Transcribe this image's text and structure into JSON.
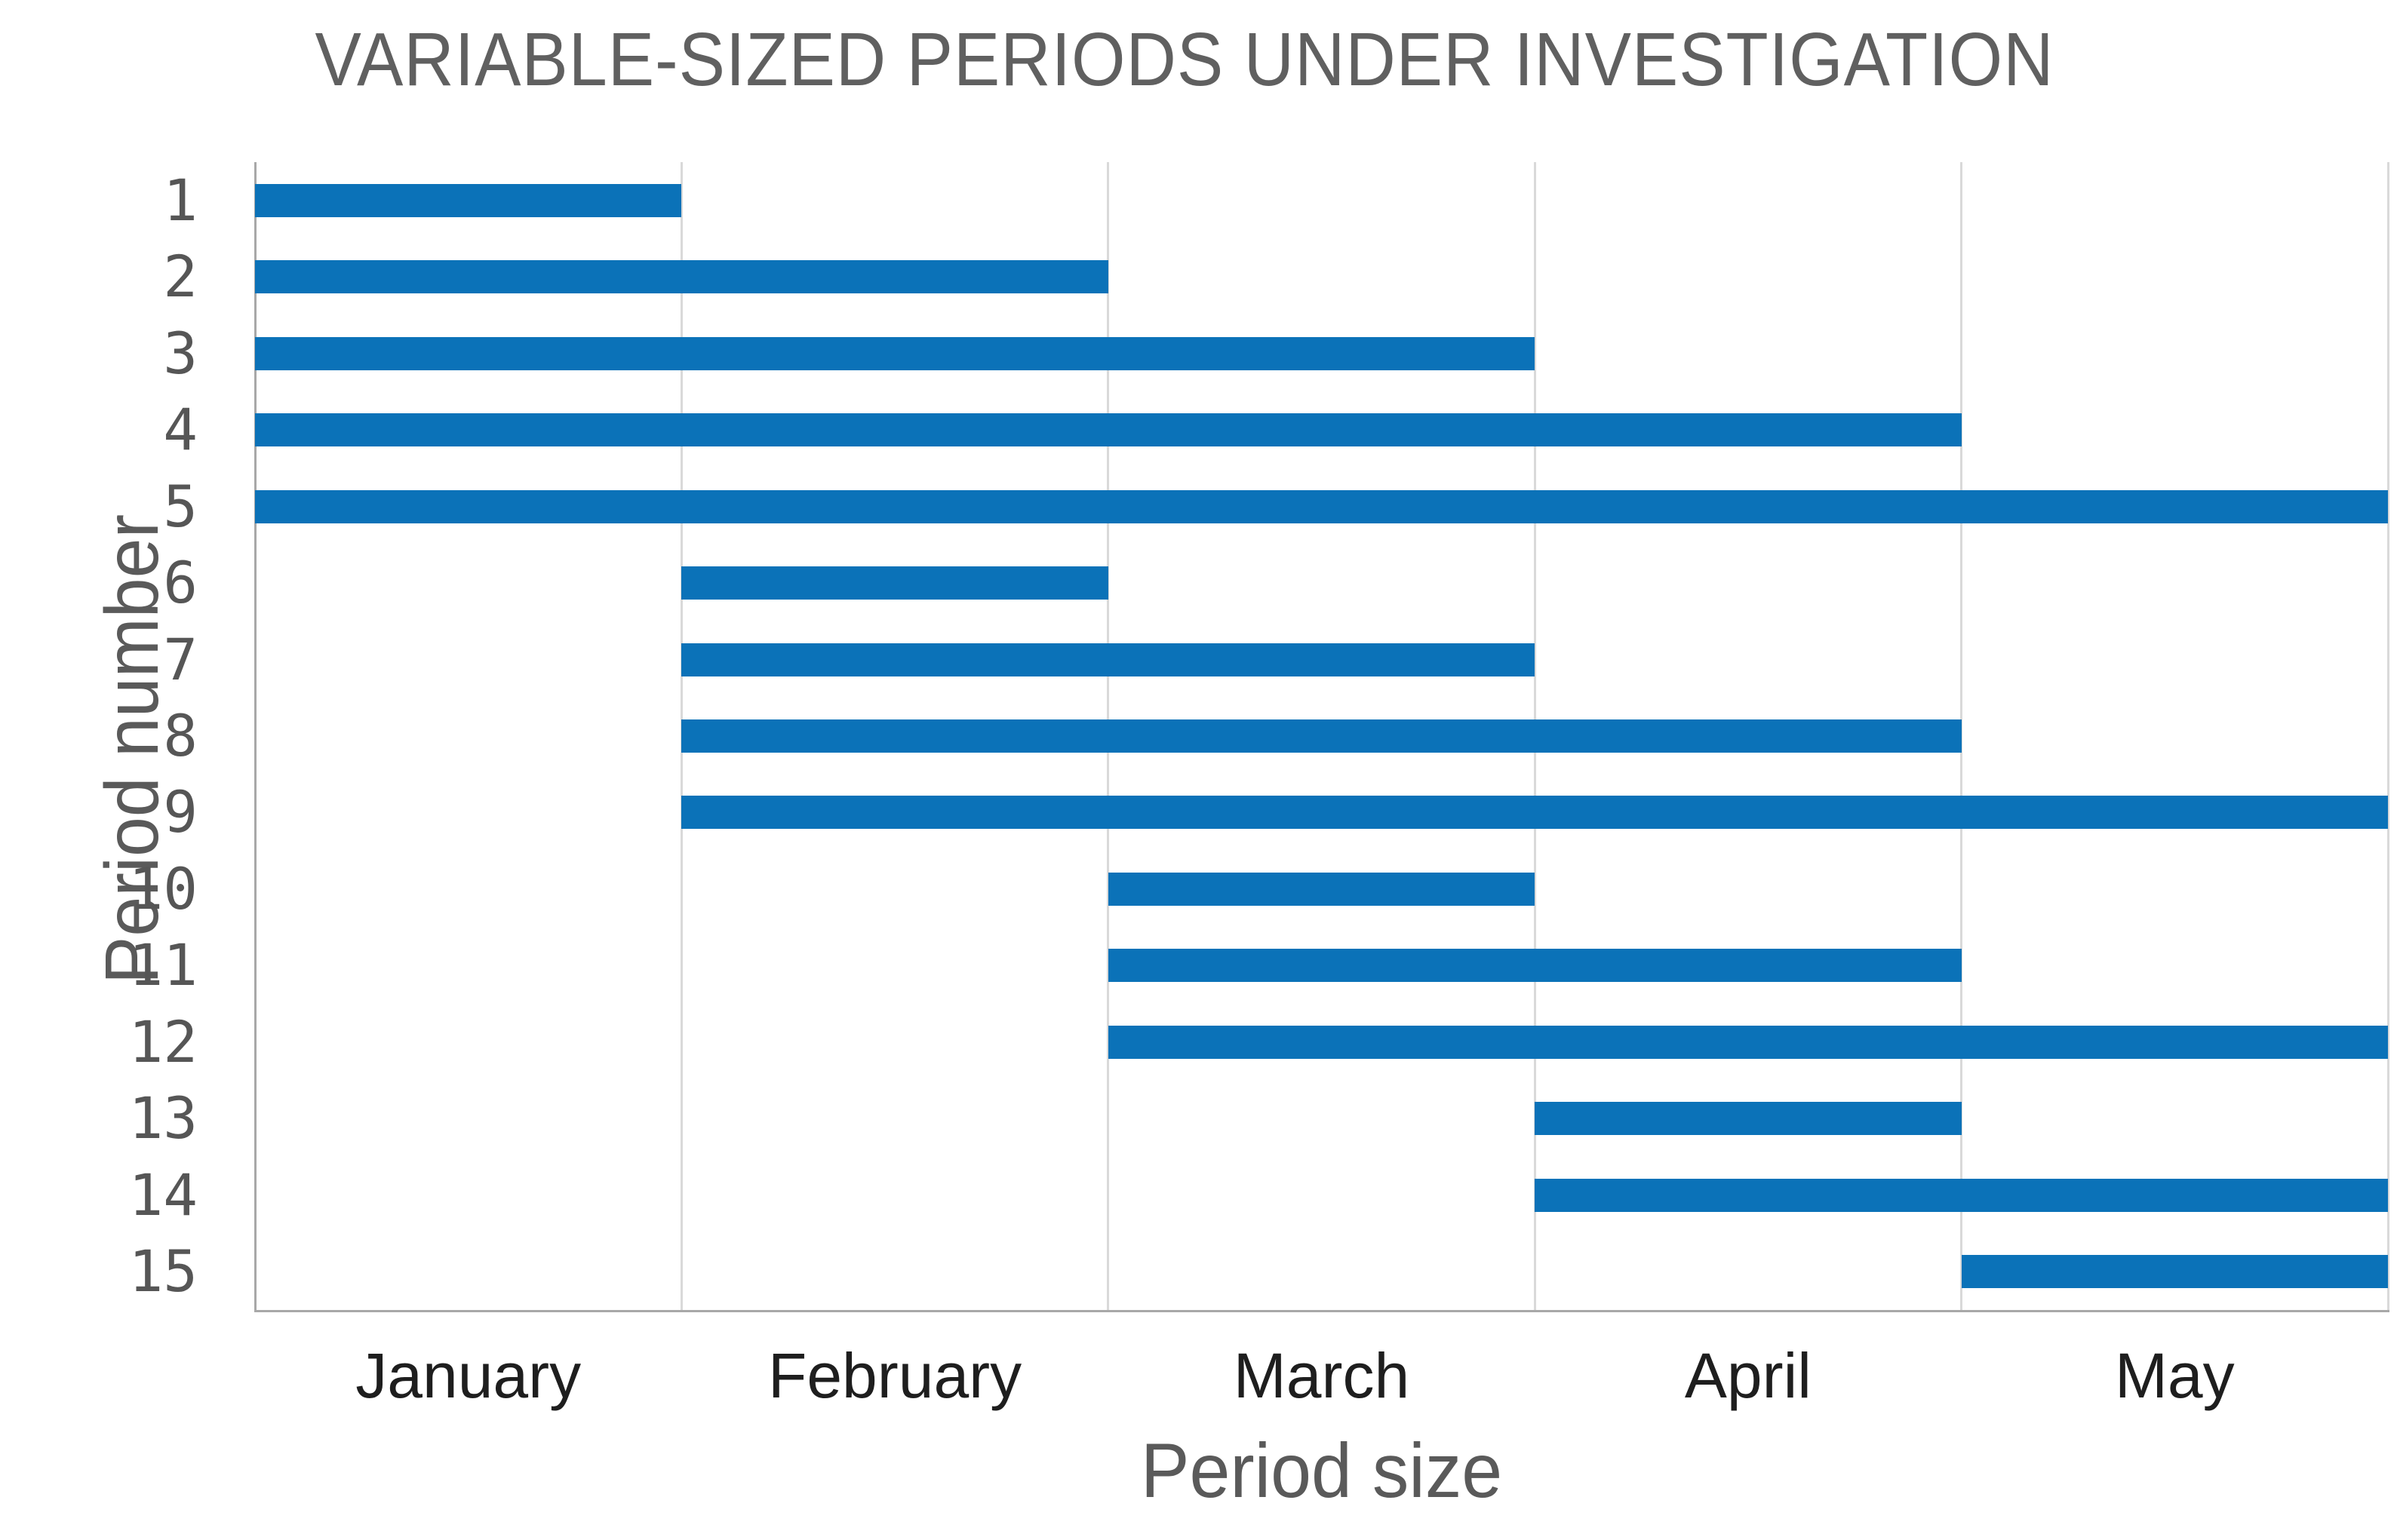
{
  "chart_data": {
    "type": "bar",
    "subtype": "horizontal-gantt",
    "title": "VARIABLE-SIZED PERIODS UNDER INVESTIGATION",
    "xlabel": "Period size",
    "ylabel": "Period number",
    "categories": [
      "1",
      "2",
      "3",
      "4",
      "5",
      "6",
      "7",
      "8",
      "9",
      "10",
      "11",
      "12",
      "13",
      "14",
      "15"
    ],
    "x_tick_labels": [
      "January",
      "February",
      "March",
      "April",
      "May"
    ],
    "xlim": [
      0,
      5
    ],
    "x_units": "months from start of January",
    "grid": "vertical",
    "legend": "none",
    "bars": [
      {
        "period": "1",
        "start": 0,
        "end": 1
      },
      {
        "period": "2",
        "start": 0,
        "end": 2
      },
      {
        "period": "3",
        "start": 0,
        "end": 3
      },
      {
        "period": "4",
        "start": 0,
        "end": 4
      },
      {
        "period": "5",
        "start": 0,
        "end": 5
      },
      {
        "period": "6",
        "start": 1,
        "end": 2
      },
      {
        "period": "7",
        "start": 1,
        "end": 3
      },
      {
        "period": "8",
        "start": 1,
        "end": 4
      },
      {
        "period": "9",
        "start": 1,
        "end": 5
      },
      {
        "period": "10",
        "start": 2,
        "end": 3
      },
      {
        "period": "11",
        "start": 2,
        "end": 4
      },
      {
        "period": "12",
        "start": 2,
        "end": 5
      },
      {
        "period": "13",
        "start": 3,
        "end": 4
      },
      {
        "period": "14",
        "start": 3,
        "end": 5
      },
      {
        "period": "15",
        "start": 4,
        "end": 5
      }
    ],
    "colors": {
      "bar": "#0b72b8",
      "gridline": "#d9d9d9",
      "axis_line": "#a8a8a8",
      "title_text": "#606060",
      "axis_title_text": "#5a5a5a",
      "tick_number_text": "#565656",
      "month_label_text": "#1e1e1e",
      "background": "#ffffff"
    }
  }
}
